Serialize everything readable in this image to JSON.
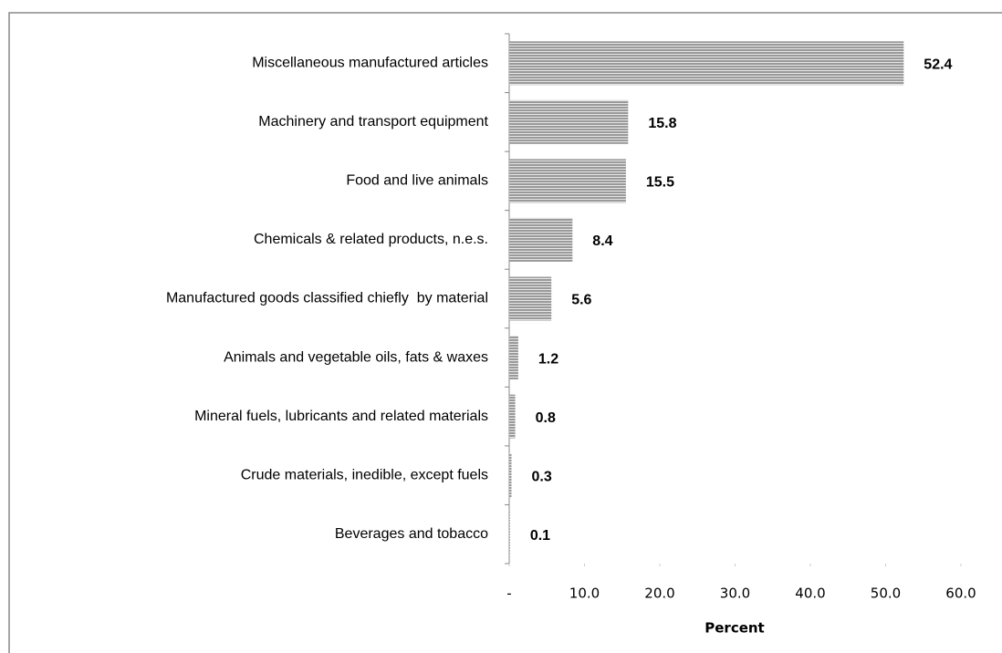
{
  "chart_data": {
    "type": "hbar",
    "categories": [
      "Miscellaneous manufactured articles",
      "Machinery and transport equipment",
      "Food and live animals",
      "Chemicals & related products, n.e.s.",
      "Manufactured goods classified chiefly  by material",
      "Animals and vegetable oils, fats & waxes",
      "Mineral fuels, lubricants and related materials",
      "Crude materials, inedible, except fuels",
      "Beverages and tobacco"
    ],
    "values": [
      52.4,
      15.8,
      15.5,
      8.4,
      5.6,
      1.2,
      0.8,
      0.3,
      0.1
    ],
    "color": "#9a9a9a",
    "xlabel": "Percent",
    "xlim": [
      0,
      60
    ],
    "xticks": [
      {
        "value": 0,
        "label": "-"
      },
      {
        "value": 10,
        "label": "10.0"
      },
      {
        "value": 20,
        "label": "20.0"
      },
      {
        "value": 30,
        "label": "30.0"
      },
      {
        "value": 40,
        "label": "40.0"
      },
      {
        "value": 50,
        "label": "50.0"
      },
      {
        "value": 60,
        "label": "60.0"
      }
    ]
  }
}
